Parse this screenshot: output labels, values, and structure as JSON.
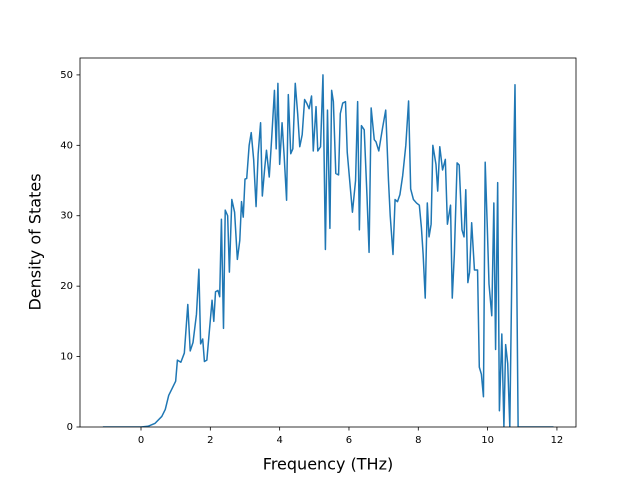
{
  "chart_data": {
    "type": "line",
    "xlabel": "Frequency (THz)",
    "ylabel": "Density of States",
    "xlim": [
      -1.76,
      12.55
    ],
    "ylim": [
      0,
      52.4
    ],
    "xticks": [
      0,
      2,
      4,
      6,
      8,
      10,
      12
    ],
    "yticks": [
      0,
      10,
      20,
      30,
      40,
      50
    ],
    "series": [
      {
        "color": "#1f77b4",
        "x": [
          -1.1,
          0,
          0.2,
          0.4,
          0.6,
          0.7,
          0.8,
          0.9,
          1.0,
          1.05,
          1.15,
          1.25,
          1.35,
          1.42,
          1.5,
          1.6,
          1.67,
          1.72,
          1.78,
          1.83,
          1.9,
          1.97,
          2.05,
          2.1,
          2.15,
          2.22,
          2.27,
          2.32,
          2.38,
          2.43,
          2.5,
          2.55,
          2.62,
          2.7,
          2.78,
          2.85,
          2.9,
          2.95,
          3.0,
          3.05,
          3.12,
          3.18,
          3.25,
          3.32,
          3.38,
          3.45,
          3.5,
          3.57,
          3.62,
          3.7,
          3.77,
          3.85,
          3.9,
          3.95,
          4.0,
          4.07,
          4.13,
          4.2,
          4.25,
          4.32,
          4.38,
          4.45,
          4.52,
          4.58,
          4.65,
          4.72,
          4.78,
          4.85,
          4.92,
          4.97,
          5.05,
          5.1,
          5.18,
          5.25,
          5.32,
          5.38,
          5.45,
          5.5,
          5.55,
          5.62,
          5.7,
          5.75,
          5.82,
          5.9,
          5.95,
          6.1,
          6.19,
          6.25,
          6.3,
          6.36,
          6.44,
          6.52,
          6.58,
          6.64,
          6.73,
          6.78,
          6.86,
          6.97,
          7.06,
          7.14,
          7.19,
          7.27,
          7.33,
          7.4,
          7.47,
          7.55,
          7.64,
          7.72,
          7.78,
          7.86,
          7.95,
          8.03,
          8.09,
          8.14,
          8.2,
          8.26,
          8.31,
          8.37,
          8.42,
          8.51,
          8.56,
          8.62,
          8.7,
          8.78,
          8.84,
          8.93,
          8.98,
          9.04,
          9.12,
          9.18,
          9.26,
          9.32,
          9.37,
          9.43,
          9.48,
          9.54,
          9.62,
          9.71,
          9.76,
          9.82,
          9.88,
          9.93,
          9.99,
          10.04,
          10.12,
          10.18,
          10.23,
          10.29,
          10.34,
          10.41,
          10.47,
          10.52,
          10.58,
          10.64,
          10.71,
          10.79,
          10.88,
          11.9
        ],
        "values": [
          0,
          0,
          0.1,
          0.5,
          1.5,
          2.5,
          4.5,
          5.5,
          6.5,
          9.5,
          9.2,
          10.5,
          17.4,
          10.8,
          12,
          16,
          22.4,
          11.8,
          12.5,
          9.3,
          9.5,
          13.5,
          18,
          15,
          19.2,
          19.4,
          18.5,
          29.5,
          14,
          30.8,
          30,
          22,
          32.3,
          30.5,
          23.8,
          26.5,
          32,
          29.8,
          35.2,
          35.3,
          40,
          41.8,
          38,
          31.3,
          38.8,
          43.2,
          32.8,
          36.8,
          39.3,
          35.5,
          41,
          47.8,
          39.5,
          48.8,
          37.3,
          43.2,
          38.5,
          32.2,
          47.2,
          38.8,
          39.5,
          48.8,
          44.5,
          39.8,
          41.5,
          46.5,
          46,
          45.2,
          47,
          39.2,
          45.5,
          39.2,
          39.8,
          50,
          25.2,
          45,
          28.2,
          47.8,
          46.2,
          36,
          35.8,
          44.5,
          46,
          46.2,
          39,
          30.5,
          35,
          46.2,
          28,
          42.8,
          42.2,
          32.8,
          24.8,
          45.3,
          40.8,
          40.5,
          39.2,
          42.5,
          45,
          35,
          30,
          24.5,
          32.3,
          32,
          33,
          35.7,
          40,
          46.3,
          33.8,
          32.3,
          31.8,
          31.5,
          28.3,
          24.5,
          18.3,
          31.8,
          27,
          28.8,
          40,
          37.3,
          33.5,
          39.8,
          36.5,
          38,
          28.8,
          31.5,
          18.3,
          24.5,
          37.5,
          37.2,
          28,
          27,
          33.7,
          20.5,
          22,
          29,
          22.3,
          22.3,
          8.5,
          7.5,
          4.3,
          37.6,
          28.5,
          20.3,
          15.8,
          31.8,
          11,
          34.7,
          2.3,
          13.2,
          0,
          11.7,
          9,
          0,
          26,
          48.6,
          0,
          0
        ]
      }
    ]
  }
}
